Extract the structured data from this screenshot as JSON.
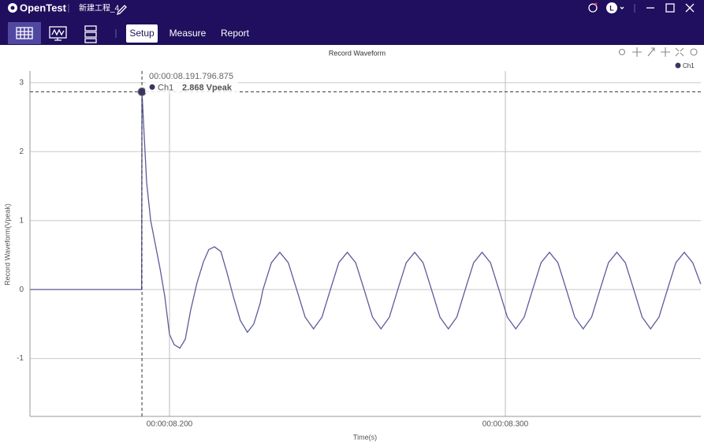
{
  "app": {
    "logo": "OpenTest",
    "project": "新建工程_4",
    "avatar": "L",
    "tabs": [
      "Setup",
      "Measure",
      "Report"
    ],
    "active_tab": 0
  },
  "chart_data": {
    "type": "line",
    "title": "Record Waveform",
    "x_label": "Time(s)",
    "y_label": "Record Waveform(Vpeak)",
    "x": [
      8.1585,
      8.1917,
      8.1918,
      8.1925,
      8.1932,
      8.1944,
      8.1958,
      8.1972,
      8.1986,
      8.2,
      8.2014,
      8.2031,
      8.2047,
      8.2063,
      8.2082,
      8.2101,
      8.2117,
      8.2134,
      8.2153,
      8.2171,
      8.219,
      8.2211,
      8.2232,
      8.2251,
      8.227,
      8.22784,
      8.23035,
      8.23286,
      8.23537,
      8.23788,
      8.24039,
      8.24289,
      8.2454,
      8.24791,
      8.25042,
      8.25293,
      8.25544,
      8.25795,
      8.26046,
      8.26297,
      8.26548,
      8.26798,
      8.27049,
      8.273,
      8.27551,
      8.27802,
      8.28053,
      8.28304,
      8.28555,
      8.28806,
      8.29057,
      8.29307,
      8.29558,
      8.29809,
      8.3006,
      8.30311,
      8.30562,
      8.30813,
      8.31064,
      8.31315,
      8.31566,
      8.31816,
      8.32067,
      8.32318,
      8.32569,
      8.3282,
      8.33071,
      8.33322,
      8.33573,
      8.33824,
      8.34075,
      8.34325,
      8.34576,
      8.34827,
      8.35078,
      8.35329,
      8.3558,
      8.3582
    ],
    "series": [
      {
        "name": "Ch1",
        "color": "#5c5b9b",
        "values": [
          0,
          0,
          2.868,
          2.2,
          1.55,
          1.0,
          0.65,
          0.3,
          -0.1,
          -0.65,
          -0.8,
          -0.85,
          -0.72,
          -0.3,
          0.1,
          0.4,
          0.58,
          0.62,
          0.55,
          0.25,
          -0.1,
          -0.45,
          -0.62,
          -0.5,
          -0.2,
          0,
          0.39,
          0.54,
          0.39,
          0,
          -0.4,
          -0.57,
          -0.4,
          0,
          0.39,
          0.54,
          0.39,
          0,
          -0.4,
          -0.57,
          -0.4,
          0,
          0.39,
          0.54,
          0.39,
          0,
          -0.4,
          -0.57,
          -0.4,
          0,
          0.39,
          0.54,
          0.39,
          0,
          -0.4,
          -0.57,
          -0.4,
          0,
          0.39,
          0.54,
          0.39,
          0,
          -0.4,
          -0.57,
          -0.4,
          0,
          0.39,
          0.54,
          0.39,
          0,
          -0.4,
          -0.57,
          -0.4,
          0,
          0.39,
          0.54,
          0.39,
          0.08
        ]
      }
    ],
    "xlim": [
      8.15845,
      8.35822
    ],
    "ylim": [
      -1.84,
      3.17
    ],
    "xticks": [
      {
        "value": 8.2,
        "label": "00:00:08.200"
      },
      {
        "value": 8.3,
        "label": "00:00:08.300"
      }
    ],
    "yticks": [
      -1,
      0,
      1,
      2,
      3
    ],
    "grid": true,
    "legend": "top-right",
    "marker_color": "#3a3560",
    "cursor": {
      "x": 8.1917969,
      "x_label": "00:00:08.191.796.875",
      "value": 2.868,
      "value_label": "2.868 Vpeak"
    }
  }
}
